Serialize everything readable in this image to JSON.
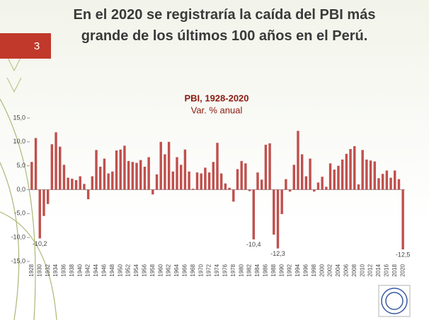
{
  "slide": {
    "page_number": "3"
  },
  "chart_data": {
    "type": "bar",
    "heading": "En el 2020 se registraría la caída del PBI más grande de los últimos 100 años en el Perú.",
    "title": "PBI, 1928-2020",
    "subtitle": "Var. % anual",
    "categories": [
      "1928",
      null,
      "1930",
      null,
      "1932",
      null,
      "1934",
      null,
      "1936",
      null,
      "1938",
      null,
      "1940",
      null,
      "1942",
      null,
      "1944",
      null,
      "1946",
      null,
      "1948",
      null,
      "1950",
      null,
      "1952",
      null,
      "1954",
      null,
      "1956",
      null,
      "1958",
      null,
      "1960",
      null,
      "1962",
      null,
      "1964",
      null,
      "1966",
      null,
      "1968",
      null,
      "1970",
      null,
      "1972",
      null,
      "1974",
      null,
      "1976",
      null,
      "1978",
      null,
      "1980",
      null,
      "1982",
      null,
      "1984",
      null,
      "1986",
      null,
      "1988",
      null,
      "1990",
      null,
      "1992",
      null,
      "1994",
      null,
      "1996",
      null,
      "1998",
      null,
      "2000",
      null,
      "2002",
      null,
      "2004",
      null,
      "2006",
      null,
      "2008",
      null,
      "2010",
      null,
      "2012",
      null,
      "2014",
      null,
      "2016",
      null,
      "2018",
      null,
      "2020"
    ],
    "values": [
      5.8,
      10.8,
      -10.2,
      -5.5,
      -3.0,
      9.5,
      12.0,
      9.0,
      5.2,
      2.5,
      2.3,
      2.0,
      2.8,
      1.2,
      -2.0,
      2.8,
      8.3,
      4.8,
      6.5,
      3.4,
      3.8,
      8.2,
      8.4,
      9.2,
      6.0,
      5.8,
      5.6,
      6.2,
      4.8,
      6.8,
      -1.0,
      3.2,
      10.0,
      7.4,
      10.0,
      3.8,
      6.8,
      5.2,
      8.4,
      3.8,
      0.2,
      3.6,
      3.4,
      4.6,
      3.6,
      5.8,
      9.8,
      3.4,
      1.3,
      0.4,
      -2.5,
      4.3,
      6.0,
      5.5,
      -0.3,
      -10.4,
      3.6,
      2.1,
      9.4,
      9.7,
      -9.4,
      -12.3,
      -5.1,
      2.2,
      -0.4,
      5.2,
      12.3,
      7.4,
      2.8,
      6.5,
      -0.4,
      1.5,
      2.7,
      0.6,
      5.5,
      4.2,
      5.0,
      6.3,
      7.5,
      8.5,
      9.1,
      1.1,
      8.3,
      6.3,
      6.1,
      5.9,
      2.4,
      3.3,
      4.0,
      2.5,
      4.0,
      2.2,
      -12.5
    ],
    "value_labels": [
      null,
      null,
      "-10,2",
      null,
      null,
      null,
      null,
      null,
      null,
      null,
      null,
      null,
      null,
      null,
      null,
      null,
      null,
      null,
      null,
      null,
      null,
      null,
      null,
      null,
      null,
      null,
      null,
      null,
      null,
      null,
      null,
      null,
      null,
      null,
      null,
      null,
      null,
      null,
      null,
      null,
      null,
      null,
      null,
      null,
      null,
      null,
      null,
      null,
      null,
      null,
      null,
      null,
      null,
      null,
      null,
      "-10,4",
      null,
      null,
      null,
      null,
      null,
      "-12,3",
      null,
      null,
      null,
      null,
      null,
      null,
      null,
      null,
      null,
      null,
      null,
      null,
      null,
      null,
      null,
      null,
      null,
      null,
      null,
      null,
      null,
      null,
      null,
      null,
      null,
      null,
      null,
      null,
      null,
      null,
      "-12,5"
    ],
    "color": "#c0504d",
    "ylim": [
      -15,
      15
    ],
    "yticks": [
      {
        "value": 15,
        "label": "15,0"
      },
      {
        "value": 10,
        "label": "10,0"
      },
      {
        "value": 5,
        "label": "5,0"
      },
      {
        "value": 0,
        "label": "0,0"
      },
      {
        "value": -5,
        "label": "-5,0"
      },
      {
        "value": -10,
        "label": "-10,0"
      },
      {
        "value": -15,
        "label": "-15,0"
      }
    ]
  }
}
